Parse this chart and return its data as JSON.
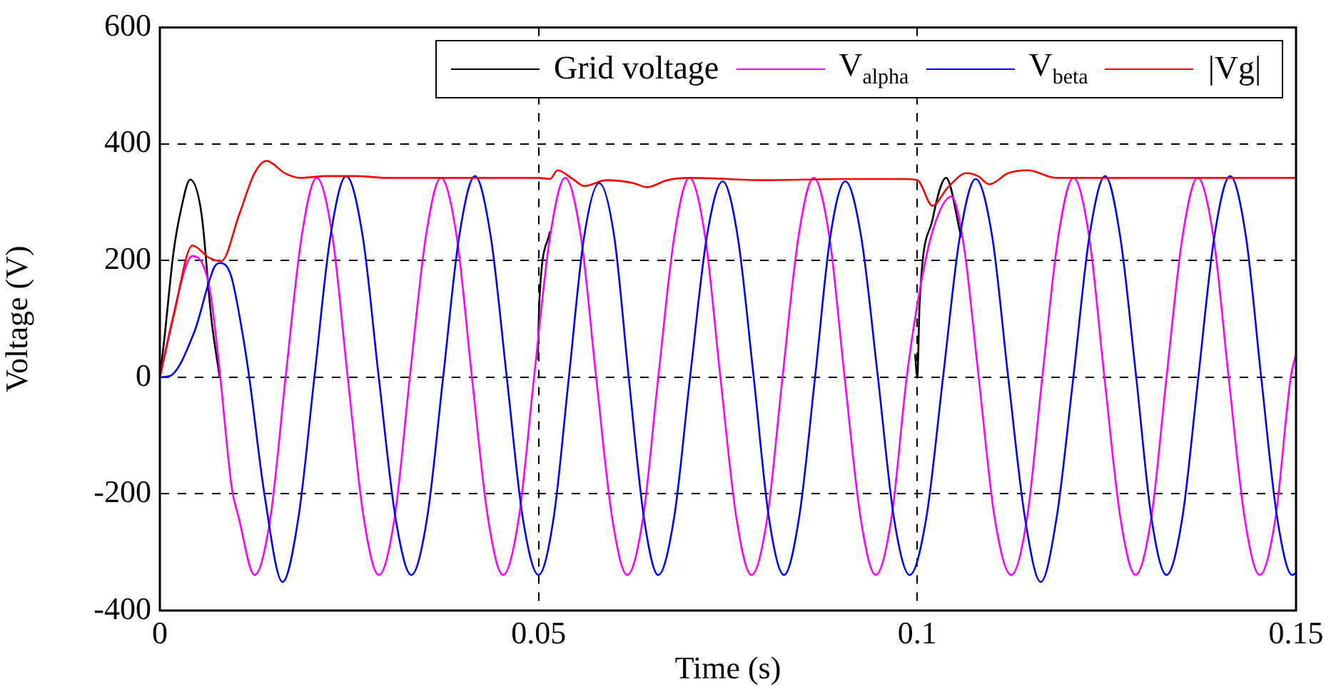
{
  "chart_data": {
    "type": "line",
    "xlabel": "Time (s)",
    "ylabel": "Voltage (V)",
    "xlim": [
      0,
      0.15
    ],
    "ylim": [
      -400,
      600
    ],
    "xticks": [
      0,
      0.05,
      0.1,
      0.15
    ],
    "yticks": [
      -400,
      -200,
      0,
      200,
      400,
      600
    ],
    "grid": true,
    "legend": "top right",
    "marker": "none",
    "line_style": "solid",
    "series": [
      {
        "name": "Grid voltage",
        "color": "#000000",
        "x": [
          0,
          0.0006,
          0.0018,
          0.0028,
          0.004,
          0.0055,
          0.0068,
          0.0079,
          0.009,
          0.0499,
          0.0501,
          0.0515,
          0.052,
          0.0997,
          0.1,
          0.1003,
          0.102,
          0.1038,
          0.1058
        ],
        "values": [
          0,
          67,
          214,
          288,
          339,
          280,
          100,
          0,
          null,
          30,
          130,
          250,
          null,
          40,
          0,
          125,
          270,
          342,
          240
        ]
      },
      {
        "name": "V$_{alpha}$",
        "color": "#ff00ff",
        "x": [
          0,
          0.0015,
          0.0034,
          0.0043,
          0.0065,
          0.0077,
          0.0095,
          0.0104,
          0.0125,
          0.0146,
          0.0166,
          0.0187,
          0.0207,
          0.0228,
          0.0248,
          0.0269,
          0.0289,
          0.031,
          0.033,
          0.0351,
          0.0371,
          0.0392,
          0.0412,
          0.0433,
          0.0453,
          0.0474,
          0.0494,
          0.0515,
          0.0535,
          0.0556,
          0.0576,
          0.0597,
          0.0617,
          0.0638,
          0.0658,
          0.0679,
          0.0699,
          0.072,
          0.074,
          0.0761,
          0.0781,
          0.0802,
          0.0822,
          0.0843,
          0.0863,
          0.0884,
          0.0904,
          0.0925,
          0.0945,
          0.0966,
          0.0986,
          0.1002,
          0.102,
          0.1045,
          0.1062,
          0.1081,
          0.1102,
          0.1124,
          0.1145,
          0.1165,
          0.1186,
          0.1206,
          0.1227,
          0.1247,
          0.1268,
          0.1288,
          0.1309,
          0.1329,
          0.135,
          0.137,
          0.1391,
          0.1411,
          0.1432,
          0.1452,
          0.1473,
          0.1493,
          0.15
        ],
        "values": [
          0,
          90,
          189,
          208,
          157,
          35,
          -190,
          -240,
          -339,
          -240,
          0,
          240,
          342,
          240,
          0,
          -240,
          -339,
          -240,
          0,
          240,
          342,
          240,
          0,
          -240,
          -339,
          -240,
          0,
          240,
          342,
          240,
          0,
          -240,
          -339,
          -240,
          0,
          240,
          342,
          240,
          0,
          -240,
          -339,
          -240,
          0,
          240,
          342,
          240,
          0,
          -240,
          -339,
          -240,
          0,
          140,
          250,
          310,
          220,
          0,
          -240,
          -339,
          -240,
          0,
          240,
          342,
          240,
          0,
          -240,
          -339,
          -240,
          0,
          240,
          342,
          240,
          0,
          -240,
          -339,
          -240,
          0,
          40
        ]
      },
      {
        "name": "V$_{beta}$",
        "color": "#0000ff",
        "x": [
          0,
          0.0013,
          0.0045,
          0.0072,
          0.008,
          0.0094,
          0.0109,
          0.0118,
          0.0138,
          0.0162,
          0.0183,
          0.0204,
          0.0225,
          0.0246,
          0.0268,
          0.0289,
          0.0311,
          0.0332,
          0.0353,
          0.0374,
          0.0395,
          0.0416,
          0.0437,
          0.0458,
          0.0479,
          0.05,
          0.052,
          0.054,
          0.056,
          0.058,
          0.06,
          0.0619,
          0.0639,
          0.0658,
          0.0679,
          0.07,
          0.0722,
          0.0743,
          0.0763,
          0.0784,
          0.0804,
          0.0824,
          0.0844,
          0.0865,
          0.0885,
          0.0905,
          0.0926,
          0.0948,
          0.0969,
          0.099,
          0.1012,
          0.1034,
          0.1056,
          0.1077,
          0.1099,
          0.112,
          0.1142,
          0.1163,
          0.1184,
          0.1206,
          0.1227,
          0.1248,
          0.1268,
          0.1289,
          0.1309,
          0.1329,
          0.135,
          0.1371,
          0.1392,
          0.1413,
          0.1434,
          0.1454,
          0.1475,
          0.1495,
          0.15
        ],
        "values": [
          0,
          2,
          76,
          189,
          196,
          174,
          76,
          0,
          -200,
          -351,
          -240,
          0,
          240,
          345,
          240,
          0,
          -240,
          -339,
          -240,
          0,
          240,
          345,
          240,
          0,
          -240,
          -339,
          -240,
          0,
          240,
          333,
          240,
          0,
          -240,
          -339,
          -240,
          0,
          240,
          336,
          240,
          0,
          -240,
          -339,
          -240,
          0,
          240,
          336,
          240,
          0,
          -240,
          -339,
          -240,
          0,
          240,
          340,
          240,
          0,
          -240,
          -351,
          -240,
          0,
          240,
          345,
          240,
          0,
          -240,
          -339,
          -240,
          0,
          240,
          345,
          240,
          0,
          -240,
          -339,
          -335
        ]
      },
      {
        "name": "|Vg|",
        "color": "#ff0000",
        "x": [
          0,
          0.0018,
          0.0043,
          0.0065,
          0.0081,
          0.0105,
          0.0125,
          0.0141,
          0.0165,
          0.0185,
          0.022,
          0.026,
          0.03,
          0.05,
          0.0515,
          0.0525,
          0.0545,
          0.056,
          0.059,
          0.0625,
          0.0643,
          0.067,
          0.07,
          0.08,
          0.09,
          0.098,
          0.1,
          0.102,
          0.104,
          0.1065,
          0.108,
          0.1095,
          0.112,
          0.1146,
          0.1183,
          0.15
        ],
        "values": [
          0,
          104,
          226,
          205,
          199,
          280,
          350,
          371,
          350,
          342,
          345,
          345,
          342,
          342,
          340,
          355,
          340,
          328,
          338,
          333,
          326,
          338,
          342,
          338,
          340,
          340,
          338,
          294,
          325,
          350,
          345,
          331,
          350,
          355,
          342,
          342
        ]
      }
    ]
  }
}
